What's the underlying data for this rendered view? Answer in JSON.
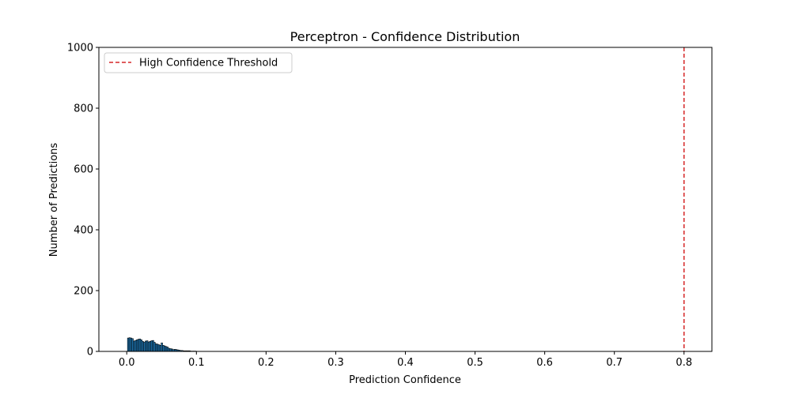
{
  "chart_data": {
    "type": "bar",
    "title": "Perceptron - Confidence Distribution",
    "xlabel": "Prediction Confidence",
    "ylabel": "Number of Predictions",
    "xlim": [
      -0.04,
      0.84
    ],
    "ylim": [
      0,
      1000
    ],
    "x_ticks": [
      0.0,
      0.1,
      0.2,
      0.3,
      0.4,
      0.5,
      0.6,
      0.7,
      0.8
    ],
    "x_tick_labels": [
      "0.0",
      "0.1",
      "0.2",
      "0.3",
      "0.4",
      "0.5",
      "0.6",
      "0.7",
      "0.8"
    ],
    "y_ticks": [
      0,
      200,
      400,
      600,
      800,
      1000
    ],
    "y_tick_labels": [
      "0",
      "200",
      "400",
      "600",
      "800",
      "1000"
    ],
    "grid": false,
    "legend_position": "top-left",
    "bins": {
      "x": [
        0.0021,
        0.0042,
        0.0063,
        0.0084,
        0.0105,
        0.0126,
        0.0147,
        0.0168,
        0.0189,
        0.021,
        0.0231,
        0.0252,
        0.0273,
        0.0294,
        0.0315,
        0.0336,
        0.0357,
        0.0378,
        0.0399,
        0.042,
        0.0441,
        0.0462,
        0.0483,
        0.0504,
        0.0525,
        0.0546,
        0.0567,
        0.0588,
        0.0609,
        0.063,
        0.0651,
        0.0672,
        0.0693,
        0.0714,
        0.0735,
        0.0756,
        0.0777,
        0.0798,
        0.0819,
        0.084,
        0.0861,
        0.0882,
        0.0903,
        0.0924,
        0.0945,
        0.0966,
        0.0987
      ],
      "counts": [
        44,
        45,
        44,
        42,
        34,
        36,
        38,
        40,
        41,
        38,
        33,
        30,
        34,
        35,
        31,
        33,
        35,
        36,
        30,
        25,
        24,
        22,
        20,
        28,
        20,
        18,
        16,
        14,
        10,
        9,
        8,
        6,
        7,
        6,
        5,
        4,
        3,
        3,
        2,
        2,
        2,
        2,
        2,
        1,
        1,
        1,
        1
      ],
      "bin_width": 0.0021,
      "fill_color": "#1f77b4",
      "edge_color": "#000000"
    },
    "threshold": {
      "x": 0.8,
      "label": "High Confidence Threshold",
      "color": "#d62728",
      "style": "dashed"
    }
  }
}
